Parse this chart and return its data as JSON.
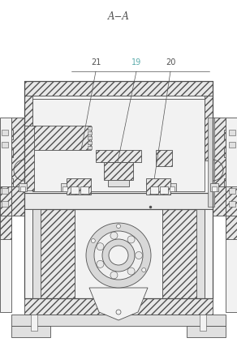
{
  "title": "A−A",
  "bg_color": "#ffffff",
  "line_color": "#505050",
  "hatch_color": "#808080",
  "label_19": "19",
  "label_20": "20",
  "label_21": "21",
  "label_color_19": "#5aabab",
  "label_color_20": "#505050",
  "label_color_21": "#505050",
  "fig_width": 2.92,
  "fig_height": 4.33,
  "dpi": 100
}
